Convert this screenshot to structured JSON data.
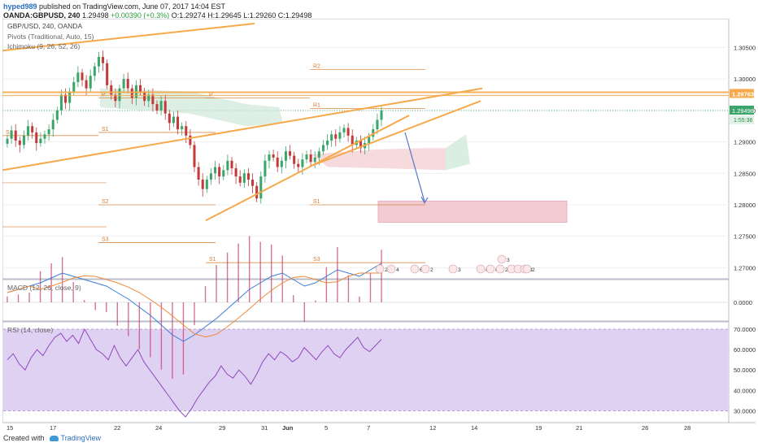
{
  "header": {
    "username": "hyped989",
    "published_text": "published on TradingView.com, June 07, 2017 14:04 EST",
    "symbol_line": "OANDA:GBPUSD, 240",
    "price": "1.29498",
    "change": "+0.00390 (+0.3%)",
    "ohlc": "O:1.29274 H:1.29645 L:1.29260 C:1.29498"
  },
  "legend": {
    "symbol": "GBP/USD, 240, OANDA",
    "pivots": "Pivots (Traditional, Auto, 15)",
    "ichimoku": "Ichimoku (9, 26, 52, 26)",
    "macd": "MACD (12, 26, close, 9)",
    "rsi": "RSI (14, close)"
  },
  "pivot_labels": [
    "R2",
    "R1",
    "P",
    "P",
    "S1",
    "S1",
    "S2",
    "S3",
    "S1",
    "S1",
    "S3"
  ],
  "price_axis": {
    "ticks": [
      "1.30500",
      "1.30000",
      "1.29500",
      "1.29000",
      "1.28500",
      "1.28000",
      "1.27500",
      "1.27000"
    ],
    "orange_label": "1.29763",
    "current_label": "1.29498",
    "countdown": "1:55:36"
  },
  "macd_axis": {
    "ticks": [
      "0.0000"
    ]
  },
  "rsi_axis": {
    "ticks": [
      "70.0000",
      "60.0000",
      "50.0000",
      "40.0000",
      "30.0000"
    ]
  },
  "time_axis": {
    "labels": [
      "15",
      "17",
      "22",
      "24",
      "29",
      "31",
      "Jun",
      "5",
      "7",
      "12",
      "14",
      "19",
      "21",
      "26",
      "28"
    ]
  },
  "events": [
    "2",
    "4",
    "6",
    "2",
    "3",
    "6",
    "0",
    "2",
    "2",
    "3",
    "3",
    "2",
    "3"
  ],
  "footer": {
    "created_with": "Created with",
    "brand": "TradingView"
  },
  "colors": {
    "up": "#3aa66a",
    "down": "#c23a3a",
    "trend": "#f6a94a",
    "rsi": "#9248c0",
    "rsi_band": "#d9c9f0",
    "zone": "#f2c6cf",
    "pivot": "#d57a2e"
  },
  "chart_data": {
    "type": "candlestick",
    "title": "GBP/USD, 240, OANDA",
    "ylim": [
      1.2685,
      1.3088
    ],
    "x_labels": [
      "15",
      "17",
      "22",
      "24",
      "29",
      "31",
      "Jun",
      "5",
      "7",
      "12",
      "14",
      "19",
      "21",
      "26",
      "28"
    ],
    "last_close": 1.29498,
    "close_series": [
      1.2905,
      1.2918,
      1.2902,
      1.2895,
      1.291,
      1.2925,
      1.2915,
      1.2898,
      1.2905,
      1.2912,
      1.292,
      1.2935,
      1.295,
      1.2975,
      1.2962,
      1.298,
      1.2995,
      1.301,
      1.2998,
      1.2985,
      1.3005,
      1.302,
      1.3035,
      1.3025,
      1.299,
      1.2975,
      1.2965,
      1.2985,
      1.3,
      1.2985,
      1.297,
      1.299,
      1.298,
      1.2965,
      1.2975,
      1.296,
      1.295,
      1.2965,
      1.2945,
      1.293,
      1.294,
      1.292,
      1.2925,
      1.291,
      1.2895,
      1.286,
      1.284,
      1.2825,
      1.284,
      1.285,
      1.286,
      1.2845,
      1.2855,
      1.287,
      1.2858,
      1.2845,
      1.2835,
      1.285,
      1.284,
      1.283,
      1.281,
      1.2845,
      1.287,
      1.288,
      1.2875,
      1.286,
      1.287,
      1.2885,
      1.2878,
      1.2865,
      1.286,
      1.2872,
      1.288,
      1.2868,
      1.2875,
      1.2885,
      1.2895,
      1.2902,
      1.2912,
      1.2905,
      1.2915,
      1.2922,
      1.291,
      1.2895,
      1.2902,
      1.289,
      1.2898,
      1.2908,
      1.292,
      1.2935,
      1.295
    ],
    "pivot_levels": [
      {
        "label": "R2",
        "value": 1.3015
      },
      {
        "label": "R1",
        "value": 1.2953
      },
      {
        "label": "P",
        "value": 1.297
      },
      {
        "label": "S1",
        "value": 1.2915
      },
      {
        "label": "S2",
        "value": 1.28
      },
      {
        "label": "S3",
        "value": 1.274
      },
      {
        "label": "S3",
        "value": 1.2708
      }
    ],
    "annotations": {
      "resistance": 1.29763,
      "target_zone": [
        1.2772,
        1.2806
      ]
    },
    "macd_series": [
      0.0006,
      0.0008,
      0.001,
      0.0012,
      0.0015,
      0.0018,
      0.0016,
      0.0014,
      0.0012,
      0.001,
      0.0006,
      0.0002,
      -0.0003,
      -0.0008,
      -0.0014,
      -0.002,
      -0.0024,
      -0.002,
      -0.0015,
      -0.001,
      -0.0004,
      0.0002,
      0.0008,
      0.0012,
      0.0016,
      0.0018,
      0.0014,
      0.001,
      0.0012,
      0.0016,
      0.002,
      0.0018,
      0.0016,
      0.002,
      0.0024
    ],
    "rsi_series": [
      55,
      58,
      53,
      50,
      56,
      60,
      57,
      62,
      66,
      68,
      64,
      67,
      63,
      70,
      65,
      60,
      58,
      55,
      62,
      56,
      52,
      56,
      60,
      54,
      50,
      46,
      42,
      38,
      34,
      30,
      27,
      31,
      36,
      40,
      44,
      47,
      52,
      48,
      46,
      50,
      47,
      43,
      48,
      54,
      58,
      55,
      59,
      57,
      54,
      56,
      61,
      58,
      55,
      59,
      62,
      58,
      56,
      60,
      63,
      66,
      61,
      59,
      62,
      65
    ],
    "rsi_ylim": [
      25,
      72
    ]
  }
}
